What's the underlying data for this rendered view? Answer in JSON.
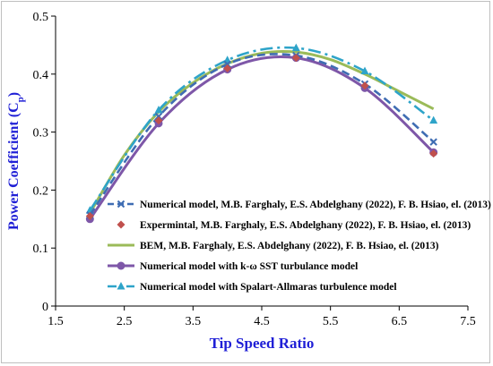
{
  "chart_data": {
    "type": "line",
    "xlabel": "Tip Speed Ratio",
    "ylabel_main": "Power Coefficient (C",
    "ylabel_sub": "p",
    "ylabel_close": ")",
    "xlim": [
      1.5,
      7.5
    ],
    "ylim": [
      0,
      0.5
    ],
    "xticks": [
      1.5,
      2.5,
      3.5,
      4.5,
      5.5,
      6.5,
      7.5
    ],
    "yticks": [
      0,
      0.1,
      0.2,
      0.3,
      0.4,
      0.5
    ],
    "xtick_labels": [
      "1.5",
      "2.5",
      "3.5",
      "4.5",
      "5.5",
      "6.5",
      "7.5"
    ],
    "ytick_labels": [
      "0",
      "0.1",
      "0.2",
      "0.3",
      "0.4",
      "0.5"
    ],
    "grid": "none",
    "legend_position": "inside-bottom-center",
    "series": [
      {
        "name": "Numerical model, M.B. Farghaly, E.S. Abdelghany (2022), F. B. Hsiao, el. (2013)",
        "color": "#3f6db3",
        "style": "dashed",
        "marker": "x",
        "x": [
          2,
          3,
          4,
          5,
          6,
          7
        ],
        "y": [
          0.157,
          0.327,
          0.417,
          0.432,
          0.383,
          0.283
        ]
      },
      {
        "name": "Expermintal, M.B. Farghaly, E.S. Abdelghany (2022), F. B. Hsiao, el. (2013)",
        "color": "#c0504d",
        "style": "markers",
        "marker": "diamond",
        "x": [
          2,
          3,
          4,
          5,
          6,
          7
        ],
        "y": [
          0.155,
          0.32,
          0.41,
          0.428,
          0.38,
          0.263
        ]
      },
      {
        "name": "BEM, M.B. Farghaly, E.S. Abdelghany (2022), F. B. Hsiao, el. (2013)",
        "color": "#9bbb59",
        "style": "solid",
        "marker": "none",
        "x": [
          2,
          2.5,
          3,
          3.5,
          4,
          4.5,
          5,
          5.5,
          6,
          6.5,
          7
        ],
        "y": [
          0.16,
          0.26,
          0.335,
          0.385,
          0.418,
          0.436,
          0.438,
          0.425,
          0.4,
          0.37,
          0.34
        ]
      },
      {
        "name": "Numerical model with k-ω SST turbulance model",
        "color": "#7e57a8",
        "style": "solid",
        "marker": "circle",
        "x": [
          2,
          3,
          4,
          5,
          6,
          7
        ],
        "y": [
          0.15,
          0.315,
          0.408,
          0.428,
          0.376,
          0.265
        ]
      },
      {
        "name": "Numerical model with Spalart-Allmaras turbulence model",
        "color": "#2ea4c9",
        "style": "dashdot",
        "marker": "triangle",
        "x": [
          2,
          3,
          4,
          5,
          6,
          7
        ],
        "y": [
          0.165,
          0.338,
          0.424,
          0.445,
          0.405,
          0.32
        ]
      }
    ]
  }
}
